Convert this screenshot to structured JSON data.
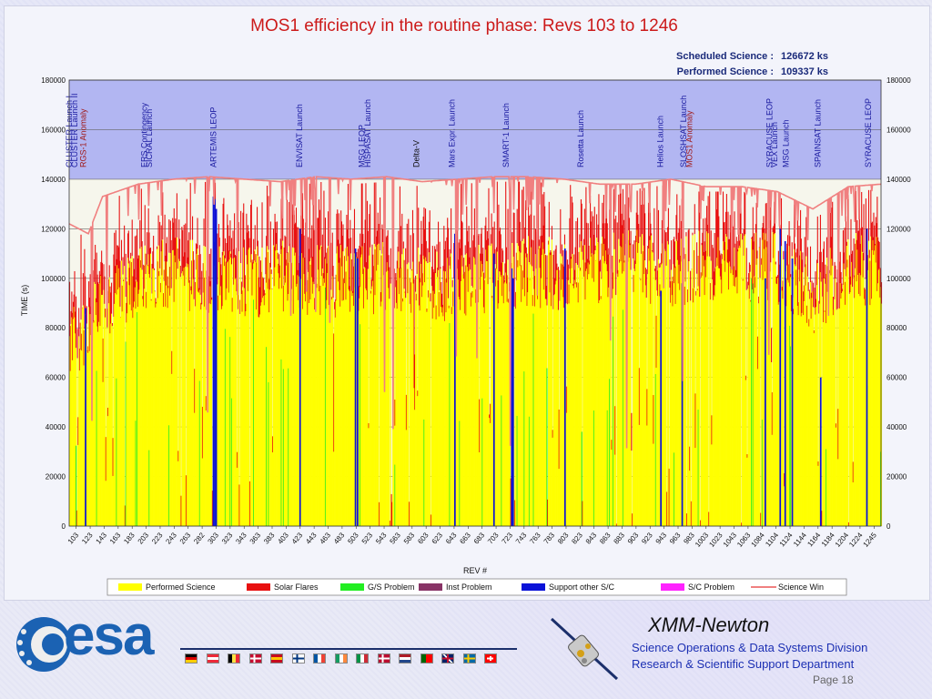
{
  "slide": {
    "page_label": "Page 18"
  },
  "footer": {
    "org_logo_text": "esa",
    "mission": "XMM-Newton",
    "line1": "Science Operations & Data Systems Division",
    "line2": "Research & Scientific Support Department",
    "flags": [
      {
        "name": "germany",
        "colors": [
          "#000000",
          "#dd0000",
          "#ffce00"
        ],
        "dir": "h"
      },
      {
        "name": "austria",
        "colors": [
          "#ed2939",
          "#ffffff",
          "#ed2939"
        ],
        "dir": "h"
      },
      {
        "name": "belgium",
        "colors": [
          "#000000",
          "#fae042",
          "#ed2939"
        ],
        "dir": "v"
      },
      {
        "name": "denmark",
        "colors": [
          "#c60c30",
          "#ffffff"
        ],
        "dir": "cross"
      },
      {
        "name": "spain",
        "colors": [
          "#c60b1e",
          "#ffc400",
          "#c60b1e"
        ],
        "dir": "h"
      },
      {
        "name": "finland",
        "colors": [
          "#ffffff",
          "#003580"
        ],
        "dir": "cross"
      },
      {
        "name": "france",
        "colors": [
          "#0055a4",
          "#ffffff",
          "#ef4135"
        ],
        "dir": "v"
      },
      {
        "name": "ireland",
        "colors": [
          "#169b62",
          "#ffffff",
          "#ff883e"
        ],
        "dir": "v"
      },
      {
        "name": "italy",
        "colors": [
          "#009246",
          "#ffffff",
          "#ce2b37"
        ],
        "dir": "v"
      },
      {
        "name": "norway",
        "colors": [
          "#ba0c2f",
          "#ffffff",
          "#00205b"
        ],
        "dir": "cross"
      },
      {
        "name": "netherlands",
        "colors": [
          "#ae1c28",
          "#ffffff",
          "#21468b"
        ],
        "dir": "h"
      },
      {
        "name": "portugal",
        "colors": [
          "#006600",
          "#ff0000"
        ],
        "dir": "v2"
      },
      {
        "name": "uk",
        "colors": [
          "#012169",
          "#ffffff",
          "#c8102e"
        ],
        "dir": "uk"
      },
      {
        "name": "sweden",
        "colors": [
          "#006aa7",
          "#fecc00"
        ],
        "dir": "cross"
      },
      {
        "name": "switzerland",
        "colors": [
          "#ff0000",
          "#ffffff"
        ],
        "dir": "swiss"
      }
    ]
  },
  "chart_data": {
    "type": "bar",
    "title": "MOS1 efficiency in the routine phase:  Revs  103 to  1246",
    "stats": [
      {
        "label": "Scheduled Science :",
        "value": "126672  ks"
      },
      {
        "label": "Performed Science :",
        "value": "109337  ks"
      }
    ],
    "ylabel": "TIME (s)",
    "xlabel": "REV #",
    "ylim": [
      0,
      180000
    ],
    "yticks": [
      0,
      20000,
      40000,
      60000,
      80000,
      100000,
      120000,
      140000,
      160000,
      180000
    ],
    "xrange": [
      103,
      1246
    ],
    "xticks": [
      "103",
      "123",
      "143",
      "163",
      "183",
      "203",
      "223",
      "243",
      "263",
      "282",
      "303",
      "323",
      "343",
      "363",
      "383",
      "403",
      "423",
      "443",
      "463",
      "483",
      "503",
      "523",
      "543",
      "563",
      "583",
      "603",
      "623",
      "643",
      "663",
      "683",
      "703",
      "723",
      "743",
      "763",
      "783",
      "803",
      "823",
      "843",
      "863",
      "883",
      "903",
      "923",
      "943",
      "963",
      "983",
      "1003",
      "1023",
      "1043",
      "1063",
      "1084",
      "1104",
      "1124",
      "1144",
      "1164",
      "1184",
      "1204",
      "1224",
      "1245"
    ],
    "events": [
      {
        "label": "CLUSTER Launch I",
        "rev": 103,
        "color": "#1a1aa0"
      },
      {
        "label": "CLUSTER Launch II",
        "rev": 111,
        "color": "#1a1aa0"
      },
      {
        "label": "RGS-1 Anomaly",
        "rev": 123,
        "color": "#a01a1a"
      },
      {
        "label": "ERS Contingency",
        "rev": 209,
        "color": "#1a1aa0"
      },
      {
        "label": "SICRAL Launch",
        "rev": 216,
        "color": "#1a1aa0"
      },
      {
        "label": "ARTEMIS LEOP",
        "rev": 306,
        "color": "#1a1aa0"
      },
      {
        "label": "ENVISAT Launch",
        "rev": 427,
        "color": "#1a1aa0"
      },
      {
        "label": "MSG LEOP",
        "rev": 515,
        "color": "#1a1aa0"
      },
      {
        "label": "HISPASAT Launch",
        "rev": 523,
        "color": "#1a1aa0"
      },
      {
        "label": "Delta-V",
        "rev": 592,
        "color": "#111111"
      },
      {
        "label": "Mars Expr. Launch",
        "rev": 642,
        "color": "#1a1aa0"
      },
      {
        "label": "SMART-1 Launch",
        "rev": 718,
        "color": "#1a1aa0"
      },
      {
        "label": "Rosetta Launch",
        "rev": 823,
        "color": "#1a1aa0"
      },
      {
        "label": "Helios Launch",
        "rev": 935,
        "color": "#1a1aa0"
      },
      {
        "label": "SLOSHSAT Launch",
        "rev": 968,
        "color": "#1a1aa0"
      },
      {
        "label": "MOS1 Anomaly",
        "rev": 976,
        "color": "#a01a1a"
      },
      {
        "label": "SYRACUSE LEOP",
        "rev": 1089,
        "color": "#1a1aa0"
      },
      {
        "label": "VEX Launch",
        "rev": 1096,
        "color": "#1a1aa0"
      },
      {
        "label": "MSG Launch",
        "rev": 1112,
        "color": "#1a1aa0"
      },
      {
        "label": "SPAINSAT Launch",
        "rev": 1157,
        "color": "#1a1aa0"
      },
      {
        "label": "SYRACUSE LEOP",
        "rev": 1228,
        "color": "#1a1aa0"
      }
    ],
    "legend": [
      {
        "label": "Performed Science",
        "color": "#ffff00",
        "kind": "box"
      },
      {
        "label": "Solar Flares",
        "color": "#e81010",
        "kind": "box"
      },
      {
        "label": "G/S Problem",
        "color": "#22ee22",
        "kind": "box"
      },
      {
        "label": "Inst Problem",
        "color": "#883366",
        "kind": "box"
      },
      {
        "label": "Support other S/C",
        "color": "#0a12d8",
        "kind": "box"
      },
      {
        "label": "S/C Problem",
        "color": "#ff22ff",
        "kind": "box"
      },
      {
        "label": "Science Win",
        "color": "#f08080",
        "kind": "line"
      }
    ],
    "colors": {
      "performed": "#ffff00",
      "flares": "#e81010",
      "gs": "#22ee22",
      "support": "#0a12d8",
      "sciencewin": "#f08080",
      "upper_bg": "#b2b6f2"
    },
    "upper_band": [
      140000,
      180000
    ],
    "series_profile": {
      "performed_baseline": [
        [
          103,
          72000
        ],
        [
          150,
          90000
        ],
        [
          200,
          100000
        ],
        [
          250,
          103000
        ],
        [
          300,
          100000
        ],
        [
          350,
          98000
        ],
        [
          400,
          101000
        ],
        [
          450,
          100000
        ],
        [
          500,
          98000
        ],
        [
          550,
          101000
        ],
        [
          600,
          97000
        ],
        [
          650,
          98000
        ],
        [
          700,
          100000
        ],
        [
          750,
          103000
        ],
        [
          800,
          102000
        ],
        [
          850,
          104000
        ],
        [
          900,
          106000
        ],
        [
          950,
          100000
        ],
        [
          1000,
          106000
        ],
        [
          1050,
          105000
        ],
        [
          1100,
          104000
        ],
        [
          1150,
          92000
        ],
        [
          1200,
          105000
        ],
        [
          1246,
          102000
        ]
      ],
      "science_window": [
        [
          103,
          122000
        ],
        [
          130,
          118000
        ],
        [
          150,
          133000
        ],
        [
          200,
          138000
        ],
        [
          250,
          140000
        ],
        [
          300,
          141000
        ],
        [
          350,
          140000
        ],
        [
          400,
          139000
        ],
        [
          450,
          141000
        ],
        [
          500,
          140000
        ],
        [
          550,
          141000
        ],
        [
          600,
          139000
        ],
        [
          650,
          140000
        ],
        [
          700,
          141000
        ],
        [
          750,
          141000
        ],
        [
          800,
          140000
        ],
        [
          850,
          138000
        ],
        [
          900,
          138000
        ],
        [
          950,
          140000
        ],
        [
          1000,
          137000
        ],
        [
          1050,
          137000
        ],
        [
          1100,
          135000
        ],
        [
          1150,
          128000
        ],
        [
          1200,
          137000
        ],
        [
          1246,
          138000
        ]
      ],
      "support_spikes": [
        {
          "rev": 125,
          "top": 88000
        },
        {
          "rev": 305,
          "top": 133000
        },
        {
          "rev": 307,
          "top": 132000
        },
        {
          "rev": 309,
          "top": 128000
        },
        {
          "rev": 427,
          "top": 120000
        },
        {
          "rev": 505,
          "top": 112000
        },
        {
          "rev": 508,
          "top": 108000
        },
        {
          "rev": 645,
          "top": 118000
        },
        {
          "rev": 700,
          "top": 110000
        },
        {
          "rev": 725,
          "top": 104000
        },
        {
          "rev": 727,
          "top": 100000
        },
        {
          "rev": 800,
          "top": 112000
        },
        {
          "rev": 935,
          "top": 95000
        },
        {
          "rev": 965,
          "top": 98000
        },
        {
          "rev": 1082,
          "top": 100000
        },
        {
          "rev": 1103,
          "top": 120000
        },
        {
          "rev": 1110,
          "top": 115000
        },
        {
          "rev": 1120,
          "top": 108000
        },
        {
          "rev": 1160,
          "top": 60000
        },
        {
          "rev": 1225,
          "top": 120000
        }
      ]
    }
  }
}
